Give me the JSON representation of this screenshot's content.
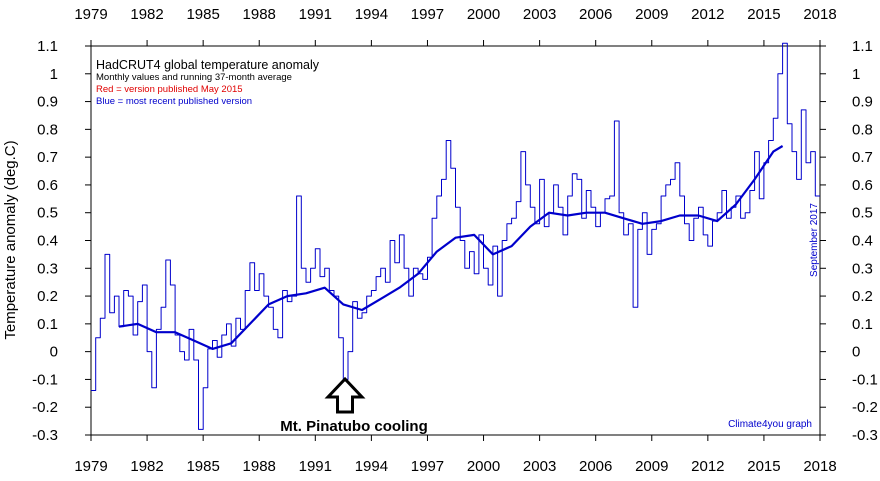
{
  "chart_data": {
    "type": "line",
    "title": "HadCRUT4 global temperature anomaly",
    "subtitle": "Monthly values and running 37-month average",
    "legend": [
      {
        "text": "Red = version published May 2015",
        "color": "#e00000"
      },
      {
        "text": "Blue = most recent published version",
        "color": "#0000cc"
      }
    ],
    "ylabel": "Temperature anomaly (deg.C)",
    "right_side_label": "September 2017",
    "credit": "Climate4you graph",
    "annotation": {
      "text": "Mt. Pinatubo cooling",
      "x": 1992.5
    },
    "xlim": [
      1979,
      2018
    ],
    "ylim": [
      -0.3,
      1.1
    ],
    "x_ticks": [
      1979,
      1982,
      1985,
      1988,
      1991,
      1994,
      1997,
      2000,
      2003,
      2006,
      2009,
      2012,
      2015,
      2018
    ],
    "y_ticks": [
      -0.3,
      -0.2,
      -0.1,
      0,
      0.1,
      0.2,
      0.3,
      0.4,
      0.5,
      0.6,
      0.7,
      0.8,
      0.9,
      1,
      1.1
    ],
    "y_tick_labels": [
      "-0.3",
      "-0.2",
      "-0.1",
      "0",
      "0.1",
      "0.2",
      "0.3",
      "0.4",
      "0.5",
      "0.6",
      "0.7",
      "0.8",
      "0.9",
      "1",
      "1.1"
    ],
    "grid": false,
    "series": [
      {
        "name": "Monthly values",
        "color": "#0000cc",
        "step": true,
        "x": [
          1979.0,
          1979.25,
          1979.5,
          1979.75,
          1980.0,
          1980.25,
          1980.5,
          1980.75,
          1981.0,
          1981.25,
          1981.5,
          1981.75,
          1982.0,
          1982.25,
          1982.5,
          1982.75,
          1983.0,
          1983.25,
          1983.5,
          1983.75,
          1984.0,
          1984.25,
          1984.5,
          1984.75,
          1985.0,
          1985.25,
          1985.5,
          1985.75,
          1986.0,
          1986.25,
          1986.5,
          1986.75,
          1987.0,
          1987.25,
          1987.5,
          1987.75,
          1988.0,
          1988.25,
          1988.5,
          1988.75,
          1989.0,
          1989.25,
          1989.5,
          1989.75,
          1990.0,
          1990.25,
          1990.5,
          1990.75,
          1991.0,
          1991.25,
          1991.5,
          1991.75,
          1992.0,
          1992.25,
          1992.5,
          1992.75,
          1993.0,
          1993.25,
          1993.5,
          1993.75,
          1994.0,
          1994.25,
          1994.5,
          1994.75,
          1995.0,
          1995.25,
          1995.5,
          1995.75,
          1996.0,
          1996.25,
          1996.5,
          1996.75,
          1997.0,
          1997.25,
          1997.5,
          1997.75,
          1998.0,
          1998.25,
          1998.5,
          1998.75,
          1999.0,
          1999.25,
          1999.5,
          1999.75,
          2000.0,
          2000.25,
          2000.5,
          2000.75,
          2001.0,
          2001.25,
          2001.5,
          2001.75,
          2002.0,
          2002.25,
          2002.5,
          2002.75,
          2003.0,
          2003.25,
          2003.5,
          2003.75,
          2004.0,
          2004.25,
          2004.5,
          2004.75,
          2005.0,
          2005.25,
          2005.5,
          2005.75,
          2006.0,
          2006.25,
          2006.5,
          2006.75,
          2007.0,
          2007.25,
          2007.5,
          2007.75,
          2008.0,
          2008.25,
          2008.5,
          2008.75,
          2009.0,
          2009.25,
          2009.5,
          2009.75,
          2010.0,
          2010.25,
          2010.5,
          2010.75,
          2011.0,
          2011.25,
          2011.5,
          2011.75,
          2012.0,
          2012.25,
          2012.5,
          2012.75,
          2013.0,
          2013.25,
          2013.5,
          2013.75,
          2014.0,
          2014.25,
          2014.5,
          2014.75,
          2015.0,
          2015.25,
          2015.5,
          2015.75,
          2016.0,
          2016.25,
          2016.5,
          2016.75,
          2017.0,
          2017.25,
          2017.5,
          2017.75
        ],
        "values": [
          -0.14,
          0.05,
          0.12,
          0.35,
          0.14,
          0.2,
          0.09,
          0.22,
          0.2,
          0.06,
          0.18,
          0.24,
          0.0,
          -0.13,
          0.08,
          0.16,
          0.33,
          0.24,
          0.06,
          0.0,
          -0.03,
          0.08,
          -0.03,
          -0.28,
          -0.13,
          0.01,
          0.04,
          -0.02,
          0.06,
          0.1,
          0.02,
          0.12,
          0.08,
          0.22,
          0.32,
          0.22,
          0.28,
          0.2,
          0.16,
          0.08,
          0.05,
          0.22,
          0.18,
          0.2,
          0.56,
          0.3,
          0.25,
          0.3,
          0.37,
          0.27,
          0.3,
          0.22,
          0.2,
          0.05,
          -0.1,
          0.0,
          0.18,
          0.12,
          0.14,
          0.2,
          0.22,
          0.27,
          0.3,
          0.25,
          0.4,
          0.32,
          0.42,
          0.3,
          0.2,
          0.3,
          0.28,
          0.26,
          0.34,
          0.48,
          0.56,
          0.62,
          0.76,
          0.66,
          0.52,
          0.4,
          0.3,
          0.36,
          0.28,
          0.42,
          0.3,
          0.24,
          0.38,
          0.2,
          0.4,
          0.46,
          0.48,
          0.54,
          0.72,
          0.6,
          0.52,
          0.46,
          0.62,
          0.45,
          0.5,
          0.6,
          0.52,
          0.42,
          0.56,
          0.64,
          0.62,
          0.48,
          0.58,
          0.52,
          0.45,
          0.5,
          0.55,
          0.56,
          0.83,
          0.5,
          0.42,
          0.46,
          0.16,
          0.44,
          0.5,
          0.35,
          0.44,
          0.46,
          0.56,
          0.6,
          0.62,
          0.68,
          0.56,
          0.46,
          0.4,
          0.48,
          0.52,
          0.42,
          0.38,
          0.47,
          0.5,
          0.58,
          0.48,
          0.52,
          0.56,
          0.48,
          0.5,
          0.58,
          0.72,
          0.55,
          0.68,
          0.76,
          0.84,
          1.0,
          1.11,
          0.82,
          0.72,
          0.62,
          0.87,
          0.68,
          0.72,
          0.56
        ]
      },
      {
        "name": "Running 37-month average",
        "color": "#0000cc",
        "x": [
          1980.5,
          1981.5,
          1982.5,
          1983.5,
          1984.5,
          1985.5,
          1986.5,
          1987.5,
          1988.5,
          1989.5,
          1990.5,
          1991.5,
          1992.5,
          1993.5,
          1994.5,
          1995.5,
          1996.5,
          1997.5,
          1998.5,
          1999.5,
          2000.5,
          2001.5,
          2002.5,
          2003.5,
          2004.5,
          2005.5,
          2006.5,
          2007.5,
          2008.5,
          2009.5,
          2010.5,
          2011.5,
          2012.5,
          2013.5,
          2014.5,
          2015.5,
          2016.0
        ],
        "values": [
          0.09,
          0.1,
          0.07,
          0.07,
          0.04,
          0.01,
          0.03,
          0.1,
          0.17,
          0.2,
          0.21,
          0.23,
          0.17,
          0.15,
          0.19,
          0.23,
          0.28,
          0.36,
          0.41,
          0.42,
          0.35,
          0.38,
          0.45,
          0.5,
          0.49,
          0.5,
          0.5,
          0.48,
          0.46,
          0.47,
          0.49,
          0.49,
          0.47,
          0.53,
          0.62,
          0.72,
          0.74
        ]
      }
    ]
  }
}
